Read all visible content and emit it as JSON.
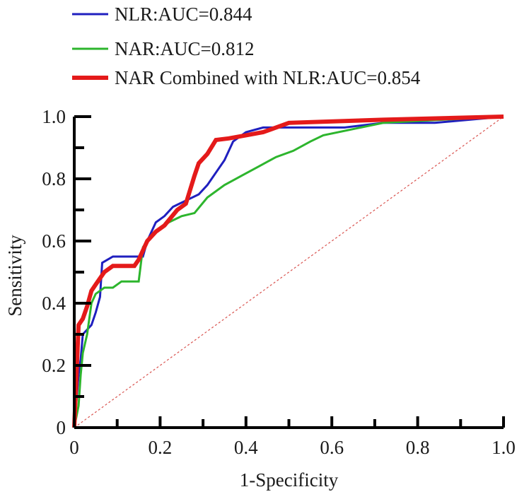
{
  "chart_data": {
    "type": "line",
    "xlabel": "1-Specificity",
    "ylabel": "Sensitivity",
    "xlim": [
      0,
      1
    ],
    "ylim": [
      0,
      1
    ],
    "x_ticks": [
      "0",
      "0.2",
      "0.4",
      "0.6",
      "0.8",
      "1.0"
    ],
    "y_ticks": [
      "0",
      "0.2",
      "0.4",
      "0.6",
      "0.8",
      "1.0"
    ],
    "legend_position": "top-left",
    "grid": false,
    "reference_line": {
      "from": [
        0,
        0
      ],
      "to": [
        1,
        1
      ],
      "color": "#d9534f",
      "style": "dashed"
    },
    "series": [
      {
        "name": "NLR:AUC=0.844",
        "color": "#1f1fbf",
        "points": [
          [
            0,
            0
          ],
          [
            0.01,
            0.17
          ],
          [
            0.015,
            0.22
          ],
          [
            0.02,
            0.3
          ],
          [
            0.04,
            0.33
          ],
          [
            0.05,
            0.37
          ],
          [
            0.06,
            0.42
          ],
          [
            0.065,
            0.53
          ],
          [
            0.09,
            0.55
          ],
          [
            0.16,
            0.55
          ],
          [
            0.17,
            0.6
          ],
          [
            0.19,
            0.66
          ],
          [
            0.21,
            0.68
          ],
          [
            0.23,
            0.71
          ],
          [
            0.26,
            0.73
          ],
          [
            0.29,
            0.75
          ],
          [
            0.31,
            0.78
          ],
          [
            0.33,
            0.82
          ],
          [
            0.35,
            0.86
          ],
          [
            0.37,
            0.92
          ],
          [
            0.4,
            0.95
          ],
          [
            0.44,
            0.965
          ],
          [
            0.63,
            0.965
          ],
          [
            0.72,
            0.98
          ],
          [
            0.84,
            0.98
          ],
          [
            1.0,
            1.0
          ]
        ]
      },
      {
        "name": "NAR:AUC=0.812",
        "color": "#2db52d",
        "points": [
          [
            0,
            0
          ],
          [
            0.01,
            0.07
          ],
          [
            0.015,
            0.17
          ],
          [
            0.02,
            0.24
          ],
          [
            0.03,
            0.3
          ],
          [
            0.04,
            0.4
          ],
          [
            0.05,
            0.43
          ],
          [
            0.07,
            0.45
          ],
          [
            0.09,
            0.45
          ],
          [
            0.11,
            0.47
          ],
          [
            0.15,
            0.47
          ],
          [
            0.16,
            0.58
          ],
          [
            0.18,
            0.62
          ],
          [
            0.2,
            0.64
          ],
          [
            0.22,
            0.66
          ],
          [
            0.25,
            0.68
          ],
          [
            0.28,
            0.69
          ],
          [
            0.31,
            0.74
          ],
          [
            0.35,
            0.78
          ],
          [
            0.39,
            0.81
          ],
          [
            0.43,
            0.84
          ],
          [
            0.47,
            0.87
          ],
          [
            0.51,
            0.89
          ],
          [
            0.55,
            0.92
          ],
          [
            0.58,
            0.94
          ],
          [
            0.72,
            0.98
          ],
          [
            1.0,
            1.0
          ]
        ]
      },
      {
        "name": "NAR Combined with NLR:AUC=0.854",
        "color": "#e41a1a",
        "points": [
          [
            0,
            0
          ],
          [
            0.01,
            0.33
          ],
          [
            0.02,
            0.35
          ],
          [
            0.03,
            0.39
          ],
          [
            0.04,
            0.44
          ],
          [
            0.05,
            0.46
          ],
          [
            0.07,
            0.5
          ],
          [
            0.09,
            0.52
          ],
          [
            0.14,
            0.52
          ],
          [
            0.15,
            0.54
          ],
          [
            0.17,
            0.6
          ],
          [
            0.19,
            0.63
          ],
          [
            0.21,
            0.65
          ],
          [
            0.24,
            0.7
          ],
          [
            0.26,
            0.72
          ],
          [
            0.28,
            0.81
          ],
          [
            0.29,
            0.85
          ],
          [
            0.31,
            0.88
          ],
          [
            0.33,
            0.925
          ],
          [
            0.36,
            0.93
          ],
          [
            0.4,
            0.94
          ],
          [
            0.44,
            0.95
          ],
          [
            0.5,
            0.98
          ],
          [
            0.72,
            0.99
          ],
          [
            1.0,
            1.0
          ]
        ]
      }
    ]
  }
}
